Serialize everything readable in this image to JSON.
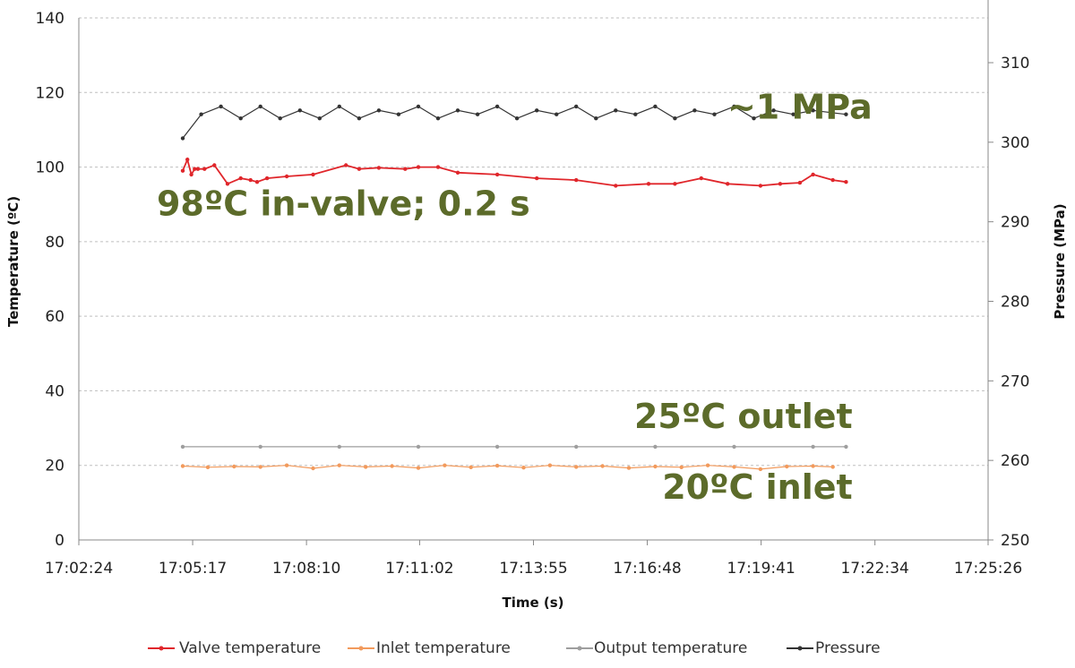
{
  "chart_data": {
    "type": "line",
    "xlabel": "Time (s)",
    "ylabel_left": "Temperature (ºC)",
    "ylabel_right": "Pressure (MPa)",
    "x_ticks": [
      "17:02:24",
      "17:05:17",
      "17:08:10",
      "17:11:02",
      "17:13:55",
      "17:16:48",
      "17:19:41",
      "17:22:34",
      "17:25:26"
    ],
    "x_range": [
      "17:02:24",
      "17:25:26"
    ],
    "y_left_ticks": [
      "0",
      "20",
      "40",
      "60",
      "80",
      "100",
      "120",
      "140"
    ],
    "y_left_range": [
      0,
      140
    ],
    "y_right_ticks": [
      "250",
      "260",
      "270",
      "280",
      "290",
      "300",
      "310"
    ],
    "y_right_range": [
      250,
      315
    ],
    "grid": "horizontal dashed",
    "legend_position": "bottom",
    "series": [
      {
        "name": "Valve temperature",
        "axis": "left",
        "color": "#e0262b",
        "x": [
          "17:05:02",
          "17:05:09",
          "17:05:15",
          "17:05:20",
          "17:05:25",
          "17:05:35",
          "17:05:50",
          "17:06:10",
          "17:06:30",
          "17:06:45",
          "17:06:55",
          "17:07:10",
          "17:07:40",
          "17:08:20",
          "17:09:10",
          "17:09:30",
          "17:10:00",
          "17:10:40",
          "17:11:00",
          "17:11:30",
          "17:12:00",
          "17:13:00",
          "17:14:00",
          "17:15:00",
          "17:16:00",
          "17:16:50",
          "17:17:30",
          "17:18:10",
          "17:18:50",
          "17:19:40",
          "17:20:10",
          "17:20:40",
          "17:21:00",
          "17:21:30",
          "17:21:50"
        ],
        "values": [
          99,
          102,
          98,
          99.5,
          99.5,
          99.5,
          100.5,
          95.5,
          97,
          96.5,
          96,
          97,
          97.5,
          98,
          100.5,
          99.5,
          99.8,
          99.5,
          100,
          100,
          98.5,
          98,
          97,
          96.5,
          95,
          95.5,
          95.5,
          97,
          95.5,
          95,
          95.5,
          95.8,
          98,
          96.5,
          96
        ]
      },
      {
        "name": "Inlet temperature",
        "axis": "left",
        "color": "#f29a5c",
        "x": [
          "17:05:02",
          "17:05:40",
          "17:06:20",
          "17:07:00",
          "17:07:40",
          "17:08:20",
          "17:09:00",
          "17:09:40",
          "17:10:20",
          "17:11:00",
          "17:11:40",
          "17:12:20",
          "17:13:00",
          "17:13:40",
          "17:14:20",
          "17:15:00",
          "17:15:40",
          "17:16:20",
          "17:17:00",
          "17:17:40",
          "17:18:20",
          "17:19:00",
          "17:19:40",
          "17:20:20",
          "17:21:00",
          "17:21:30"
        ],
        "values": [
          19.8,
          19.5,
          19.7,
          19.6,
          20,
          19.2,
          20,
          19.6,
          19.8,
          19.3,
          20,
          19.5,
          19.9,
          19.4,
          20,
          19.6,
          19.8,
          19.3,
          19.7,
          19.5,
          20,
          19.6,
          19,
          19.7,
          19.8,
          19.6
        ]
      },
      {
        "name": "Output temperature",
        "axis": "left",
        "color": "#9e9e9e",
        "x": [
          "17:05:02",
          "17:07:00",
          "17:09:00",
          "17:11:00",
          "17:13:00",
          "17:15:00",
          "17:17:00",
          "17:19:00",
          "17:21:00",
          "17:21:50"
        ],
        "values": [
          25,
          25,
          25,
          25,
          25,
          25,
          25,
          25,
          25,
          25
        ]
      },
      {
        "name": "Pressure",
        "axis": "right",
        "color": "#333333",
        "x": [
          "17:05:02",
          "17:05:30",
          "17:06:00",
          "17:06:30",
          "17:07:00",
          "17:07:30",
          "17:08:00",
          "17:08:30",
          "17:09:00",
          "17:09:30",
          "17:10:00",
          "17:10:30",
          "17:11:00",
          "17:11:30",
          "17:12:00",
          "17:12:30",
          "17:13:00",
          "17:13:30",
          "17:14:00",
          "17:14:30",
          "17:15:00",
          "17:15:30",
          "17:16:00",
          "17:16:30",
          "17:17:00",
          "17:17:30",
          "17:18:00",
          "17:18:30",
          "17:19:00",
          "17:19:30",
          "17:20:00",
          "17:20:30",
          "17:21:00",
          "17:21:50"
        ],
        "values": [
          300.5,
          303.5,
          304.5,
          303,
          304.5,
          303,
          304,
          303,
          304.5,
          303,
          304,
          303.5,
          304.5,
          303,
          304,
          303.5,
          304.5,
          303,
          304,
          303.5,
          304.5,
          303,
          304,
          303.5,
          304.5,
          303,
          304,
          303.5,
          304.5,
          303,
          304,
          303.5,
          304,
          303.5
        ]
      }
    ],
    "annotations": [
      {
        "text": "~1 MPa",
        "x": "17:22:30",
        "y_left": 113
      },
      {
        "text": "98ºC in-valve; 0.2 s",
        "x": "17:13:50",
        "y_left": 87
      },
      {
        "text": "25ºC outlet",
        "x": "17:22:00",
        "y_left": 30
      },
      {
        "text": "20ºC inlet",
        "x": "17:22:00",
        "y_left": 11
      }
    ]
  }
}
